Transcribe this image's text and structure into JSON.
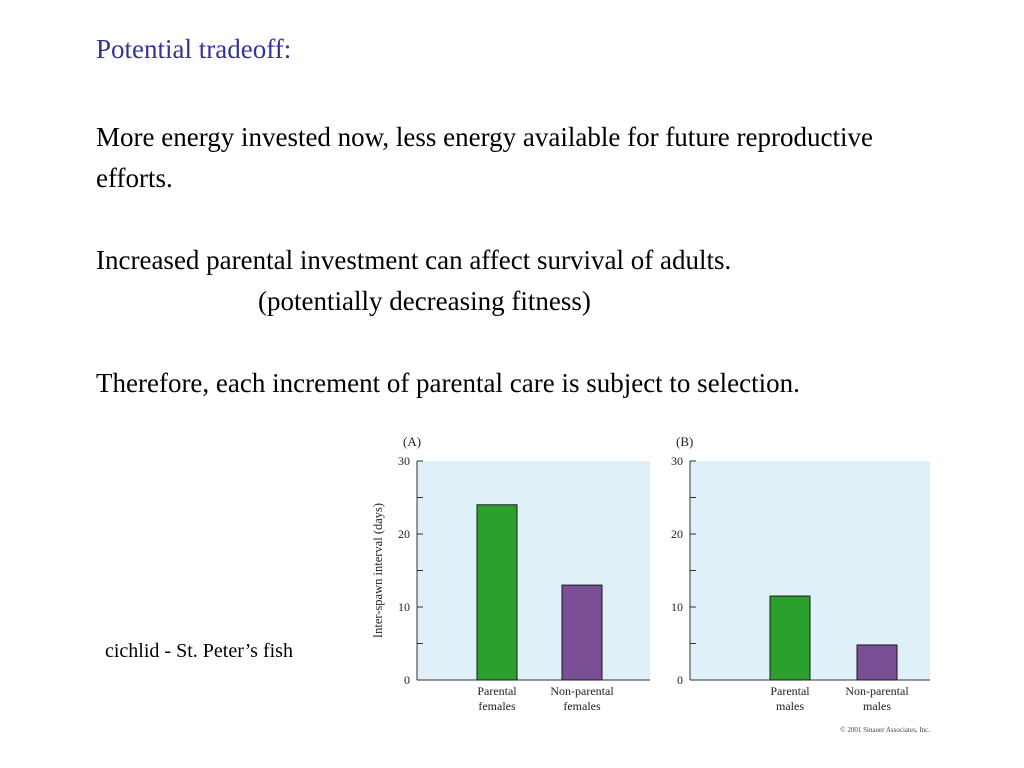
{
  "slide": {
    "title": "Potential tradeoff:",
    "paragraph1": "More energy invested now, less energy available for future reproductive efforts.",
    "paragraph2_line1": "Increased parental investment can affect survival of adults.",
    "paragraph2_line2": "(potentially decreasing fitness)",
    "paragraph3": "Therefore, each increment of parental care is subject to selection.",
    "caption": "cichlid - St. Peter’s fish"
  },
  "colors": {
    "title": "#333399",
    "panel_bg": "#dff0f8",
    "bar_green": "#2ca02c",
    "bar_purple": "#7a4f96"
  },
  "chart_data": [
    {
      "type": "bar",
      "panel_label": "(A)",
      "ylabel": "Inter-spawn interval (days)",
      "ylim": [
        0,
        30
      ],
      "yticks": [
        0,
        10,
        20,
        30
      ],
      "categories": [
        "Parental females",
        "Non-parental females"
      ],
      "values": [
        24,
        13
      ],
      "bar_colors": [
        "#2ca02c",
        "#7a4f96"
      ]
    },
    {
      "type": "bar",
      "panel_label": "(B)",
      "ylim": [
        0,
        30
      ],
      "yticks": [
        0,
        10,
        20,
        30
      ],
      "categories": [
        "Parental males",
        "Non-parental males"
      ],
      "values": [
        11.5,
        4.8
      ],
      "bar_colors": [
        "#2ca02c",
        "#7a4f96"
      ]
    }
  ],
  "copyright": "© 2001 Sinauer Associates, Inc."
}
